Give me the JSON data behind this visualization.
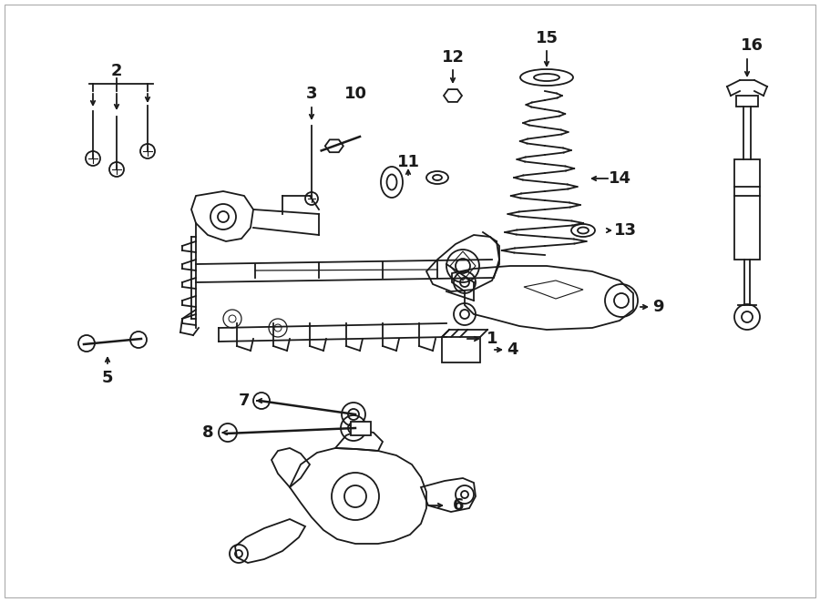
{
  "bg_color": "#ffffff",
  "line_color": "#1a1a1a",
  "figsize": [
    9.0,
    6.61
  ],
  "dpi": 100,
  "xlim": [
    0,
    900
  ],
  "ylim": [
    0,
    661
  ]
}
